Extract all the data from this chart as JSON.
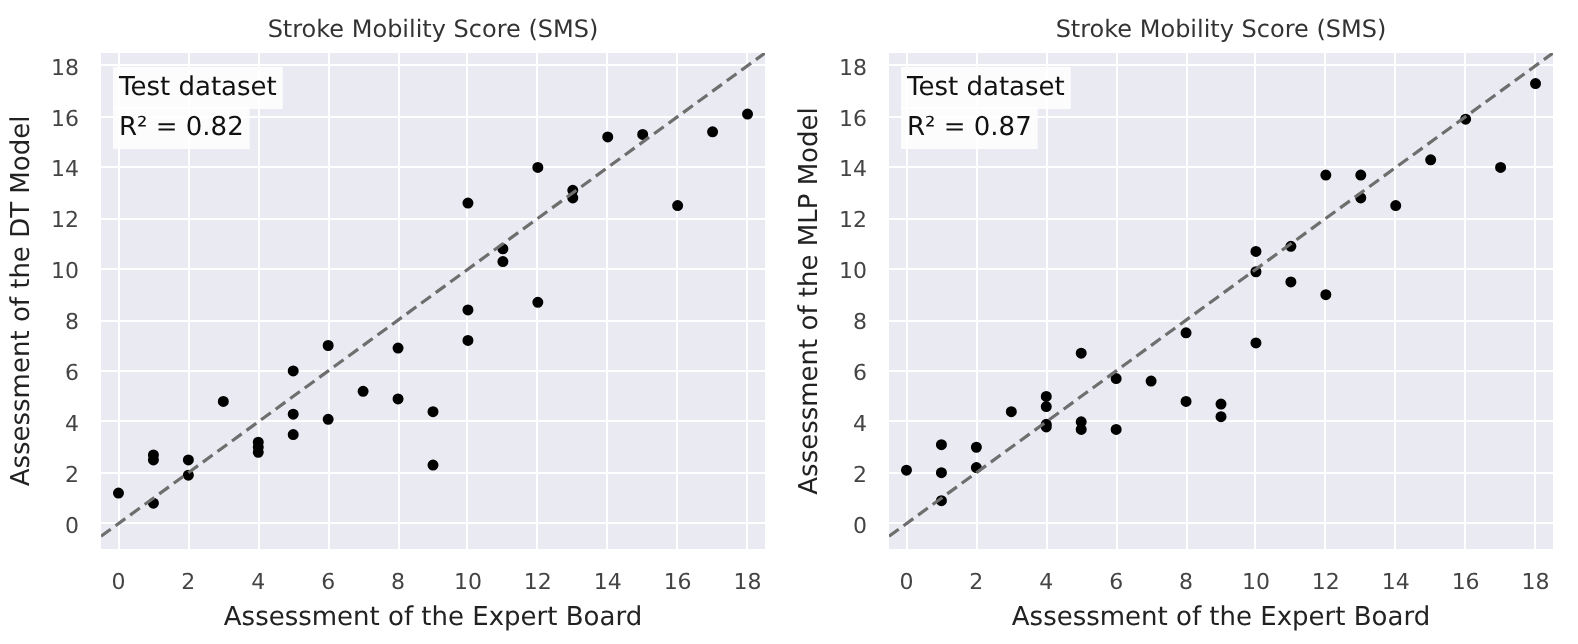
{
  "chart_data": [
    {
      "type": "scatter",
      "title": "Stroke Mobility Score (SMS)",
      "xlabel": "Assessment of the Expert Board",
      "ylabel": "Assessment of the DT Model",
      "annotations": [
        "Test dataset",
        "R² = 0.82"
      ],
      "xlim": [
        -0.5,
        18.5
      ],
      "ylim": [
        -1,
        18.5
      ],
      "xticks": [
        0,
        2,
        4,
        6,
        8,
        10,
        12,
        14,
        16,
        18
      ],
      "yticks": [
        0,
        2,
        4,
        6,
        8,
        10,
        12,
        14,
        16,
        18
      ],
      "grid": true,
      "series": [
        {
          "marker": "circle",
          "color": "#000000",
          "x": [
            0,
            1,
            1,
            1,
            2,
            2,
            3,
            4,
            4,
            4,
            5,
            5,
            5,
            6,
            6,
            7,
            8,
            8,
            9,
            9,
            10,
            10,
            10,
            11,
            11,
            12,
            12,
            13,
            13,
            14,
            15,
            16,
            17,
            18
          ],
          "values": [
            1.2,
            2.7,
            2.5,
            0.8,
            2.5,
            1.9,
            4.8,
            3.2,
            3.0,
            2.8,
            6.0,
            4.3,
            3.5,
            7.0,
            4.1,
            5.2,
            6.9,
            4.9,
            4.4,
            2.3,
            12.6,
            8.4,
            7.2,
            10.8,
            10.3,
            14.0,
            8.7,
            13.1,
            12.8,
            15.2,
            15.3,
            12.5,
            15.4,
            16.1
          ]
        },
        {
          "type": "line",
          "color": "#6e6e6e",
          "line_style": "dashed",
          "x": [
            -0.5,
            18.5
          ],
          "values": [
            -0.5,
            18.5
          ]
        }
      ]
    },
    {
      "type": "scatter",
      "title": "Stroke Mobility Score (SMS)",
      "xlabel": "Assessment of the Expert Board",
      "ylabel": "Assessment of the MLP Model",
      "annotations": [
        "Test dataset",
        "R² = 0.87"
      ],
      "xlim": [
        -0.5,
        18.5
      ],
      "ylim": [
        -1,
        18.5
      ],
      "xticks": [
        0,
        2,
        4,
        6,
        8,
        10,
        12,
        14,
        16,
        18
      ],
      "yticks": [
        0,
        2,
        4,
        6,
        8,
        10,
        12,
        14,
        16,
        18
      ],
      "grid": true,
      "series": [
        {
          "marker": "circle",
          "color": "#000000",
          "x": [
            0,
            1,
            1,
            1,
            2,
            2,
            3,
            4,
            4,
            4,
            4,
            5,
            5,
            5,
            6,
            6,
            7,
            8,
            8,
            9,
            9,
            10,
            10,
            10,
            11,
            11,
            12,
            12,
            13,
            13,
            14,
            15,
            16,
            17,
            18
          ],
          "values": [
            2.1,
            3.1,
            2.0,
            0.9,
            3.0,
            2.2,
            4.4,
            5.0,
            4.6,
            3.9,
            3.8,
            6.7,
            4.0,
            3.7,
            5.7,
            3.7,
            5.6,
            7.5,
            4.8,
            4.7,
            4.2,
            10.7,
            9.9,
            7.1,
            9.5,
            10.9,
            13.7,
            9.0,
            13.7,
            12.8,
            12.5,
            14.3,
            15.9,
            14.0,
            17.3
          ]
        },
        {
          "type": "line",
          "color": "#6e6e6e",
          "line_style": "dashed",
          "x": [
            -0.5,
            18.5
          ],
          "values": [
            -0.5,
            18.5
          ]
        }
      ]
    }
  ]
}
